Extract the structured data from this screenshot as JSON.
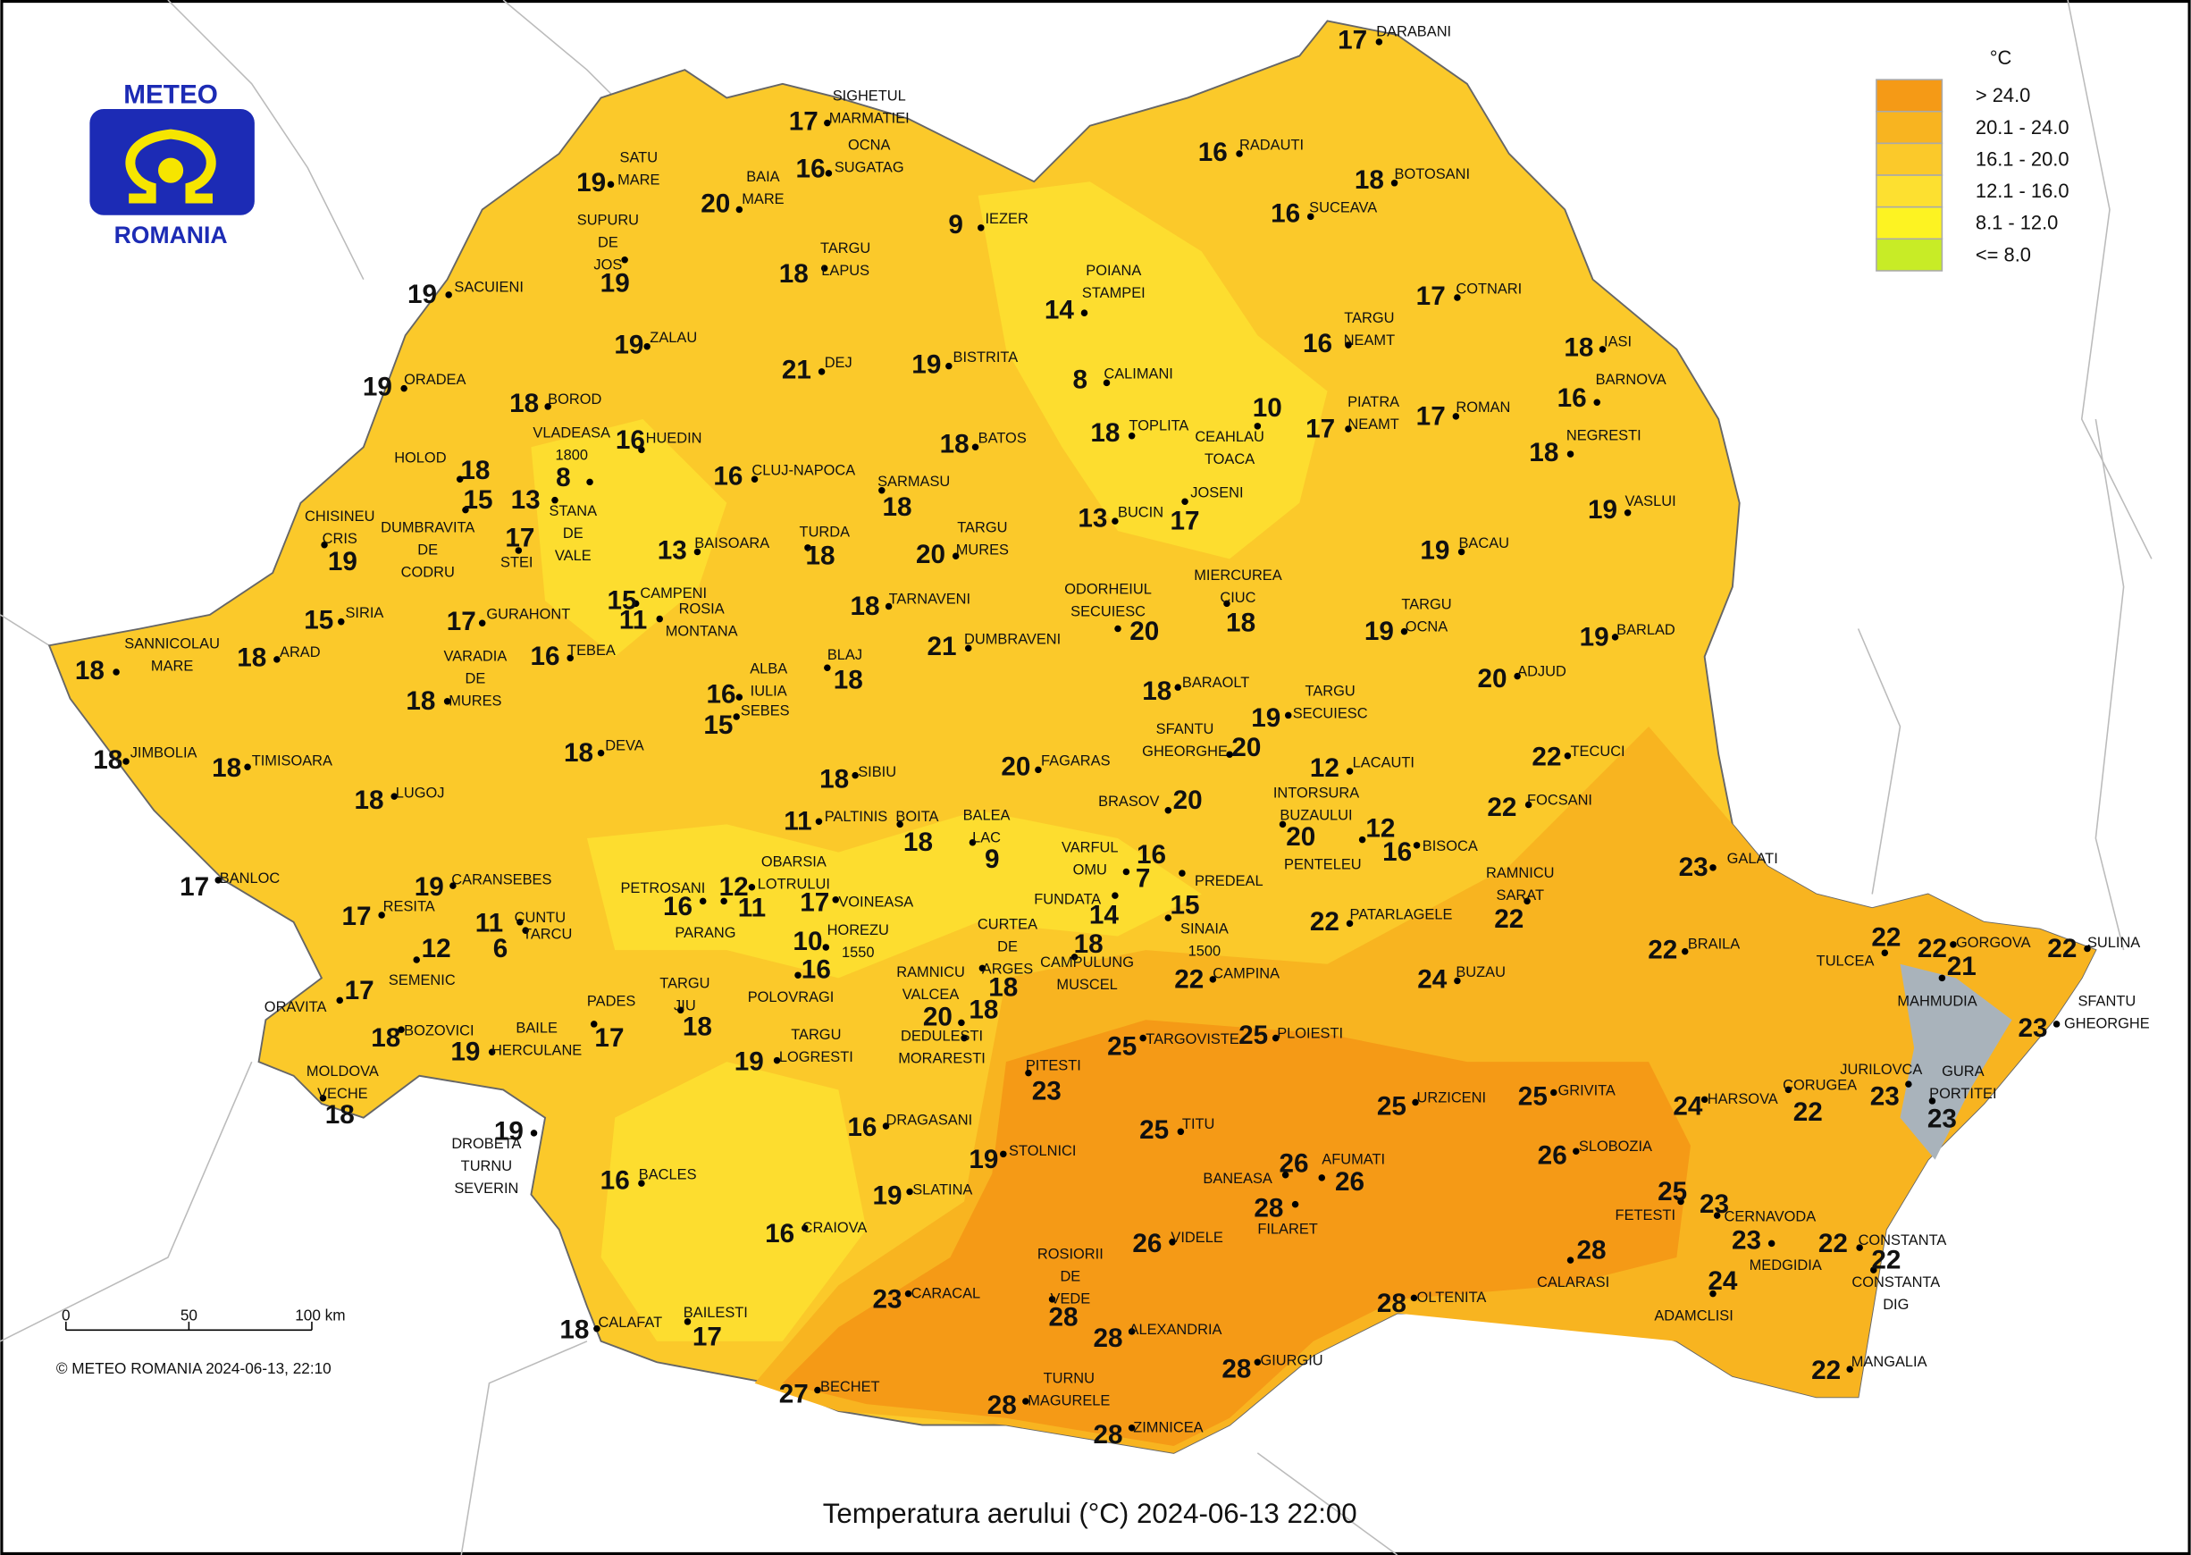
{
  "logo": {
    "top": "METEO",
    "bottom": "ROMANIA"
  },
  "legend": {
    "title": "°C",
    "items": [
      {
        "label": "> 24.0",
        "color": "#f59a16"
      },
      {
        "label": "20.1 - 24.0",
        "color": "#f8b420"
      },
      {
        "label": "16.1 - 20.0",
        "color": "#fbc92a"
      },
      {
        "label": "12.1 - 16.0",
        "color": "#fde030"
      },
      {
        "label": "8.1 - 12.0",
        "color": "#fdf322"
      },
      {
        "label": "<= 8.0",
        "color": "#c8ec26"
      }
    ]
  },
  "scale": {
    "ticks": [
      "0",
      "50",
      "100 km"
    ]
  },
  "credit": "© METEO ROMANIA 2024-06-13, 22:10",
  "title": "Temperatura aerului (°C) 2024-06-13 22:00",
  "stations": [
    {
      "name": [
        "DARABANI"
      ],
      "temp": 17
    },
    {
      "name": [
        "SIGHETUL",
        "MARMATIEI"
      ],
      "temp": 17
    },
    {
      "name": [
        "SATU",
        "MARE"
      ],
      "temp": 19
    },
    {
      "name": [
        "BAIA",
        "MARE"
      ],
      "temp": 20
    },
    {
      "name": [
        "OCNA",
        "SUGATAG"
      ],
      "temp": 16
    },
    {
      "name": [
        "IEZER"
      ],
      "temp": 9
    },
    {
      "name": [
        "RADAUTI"
      ],
      "temp": 16
    },
    {
      "name": [
        "BOTOSANI"
      ],
      "temp": 18
    },
    {
      "name": [
        "SUCEAVA"
      ],
      "temp": 16
    },
    {
      "name": [
        "SUPURU",
        "DE",
        "JOS"
      ],
      "temp": 19
    },
    {
      "name": [
        "TARGU",
        "LAPUS"
      ],
      "temp": 18
    },
    {
      "name": [
        "SACUIENI"
      ],
      "temp": 19
    },
    {
      "name": [
        "ZALAU"
      ],
      "temp": 19
    },
    {
      "name": [
        "POIANA",
        "STAMPEI"
      ],
      "temp": 14
    },
    {
      "name": [
        "COTNARI"
      ],
      "temp": 17
    },
    {
      "name": [
        "TARGU",
        "NEAMT"
      ],
      "temp": 16
    },
    {
      "name": [
        "IASI"
      ],
      "temp": 18
    },
    {
      "name": [
        "ORADEA"
      ],
      "temp": 19
    },
    {
      "name": [
        "DEJ"
      ],
      "temp": 21
    },
    {
      "name": [
        "BISTRITA"
      ],
      "temp": 19
    },
    {
      "name": [
        "CALIMANI"
      ],
      "temp": 8
    },
    {
      "name": [
        "BARNOVA"
      ],
      "temp": 16
    },
    {
      "name": [
        "BOROD"
      ],
      "temp": 18
    },
    {
      "name": [
        "VLADEASA",
        "1800"
      ],
      "temp": 8
    },
    {
      "name": [
        "HUEDIN"
      ],
      "temp": 16
    },
    {
      "name": [
        "HOLOD"
      ],
      "temp": 18
    },
    {
      "name": [
        "CEAHLAU",
        "TOACA"
      ],
      "temp": 10
    },
    {
      "name": [
        "PIATRA",
        "NEAMT"
      ],
      "temp": 17
    },
    {
      "name": [
        "ROMAN"
      ],
      "temp": 17
    },
    {
      "name": [
        "TOPLITA"
      ],
      "temp": 18
    },
    {
      "name": [
        "BATOS"
      ],
      "temp": 18
    },
    {
      "name": [
        "NEGRESTI"
      ],
      "temp": 18
    },
    {
      "name": [
        "CLUJ-NAPOCA"
      ],
      "temp": 16
    },
    {
      "name": [
        "SARMASU"
      ],
      "temp": 18
    },
    {
      "name": [
        "DUMBRAVITA",
        "DE",
        "CODRU"
      ],
      "temp": 15
    },
    {
      "name": [
        "STANA",
        "DE",
        "VALE"
      ],
      "temp": 13
    },
    {
      "name": [
        "CHISINEU",
        "CRIS"
      ],
      "temp": 19
    },
    {
      "name": [
        "STEI"
      ],
      "temp": 17
    },
    {
      "name": [
        "BUCIN"
      ],
      "temp": 13
    },
    {
      "name": [
        "JOSENI"
      ],
      "temp": 17
    },
    {
      "name": [
        "BAISOARA"
      ],
      "temp": 13
    },
    {
      "name": [
        "TURDA"
      ],
      "temp": 18
    },
    {
      "name": [
        "TARGU",
        "MURES"
      ],
      "temp": 20
    },
    {
      "name": [
        "VASLUI"
      ],
      "temp": 19
    },
    {
      "name": [
        "BACAU"
      ],
      "temp": 19
    },
    {
      "name": [
        "SIRIA"
      ],
      "temp": 15
    },
    {
      "name": [
        "GURAHONT"
      ],
      "temp": 17
    },
    {
      "name": [
        "CAMPENI"
      ],
      "temp": 15
    },
    {
      "name": [
        "ROSIA",
        "MONTANA"
      ],
      "temp": 11
    },
    {
      "name": [
        "TARNAVENI"
      ],
      "temp": 18
    },
    {
      "name": [
        "ODORHEIUL",
        "SECUIESC"
      ],
      "temp": 20
    },
    {
      "name": [
        "MIERCUREA",
        "CIUC"
      ],
      "temp": 18
    },
    {
      "name": [
        "TARGU",
        "OCNA"
      ],
      "temp": 19
    },
    {
      "name": [
        "BARLAD"
      ],
      "temp": 19
    },
    {
      "name": [
        "SANNICOLAU",
        "MARE"
      ],
      "temp": 18
    },
    {
      "name": [
        "ARAD"
      ],
      "temp": 18
    },
    {
      "name": [
        "VARADIA",
        "DE",
        "MURES"
      ],
      "temp": 18
    },
    {
      "name": [
        "TEBEA"
      ],
      "temp": 16
    },
    {
      "name": [
        "DUMBRAVENI"
      ],
      "temp": 21
    },
    {
      "name": [
        "BLAJ"
      ],
      "temp": 18
    },
    {
      "name": [
        "ADJUD"
      ],
      "temp": 20
    },
    {
      "name": [
        "ALBA",
        "IULIA"
      ],
      "temp": 16
    },
    {
      "name": [
        "SEBES"
      ],
      "temp": 15
    },
    {
      "name": [
        "BARAOLT"
      ],
      "temp": 18
    },
    {
      "name": [
        "TARGU",
        "SECUIESC"
      ],
      "temp": 19
    },
    {
      "name": [
        "JIMBOLIA"
      ],
      "temp": 18
    },
    {
      "name": [
        "TIMISOARA"
      ],
      "temp": 18
    },
    {
      "name": [
        "DEVA"
      ],
      "temp": 18
    },
    {
      "name": [
        "SFANTU",
        "GHEORGHE"
      ],
      "temp": 20
    },
    {
      "name": [
        "TECUCI"
      ],
      "temp": 22
    },
    {
      "name": [
        "SIBIU"
      ],
      "temp": 18
    },
    {
      "name": [
        "FAGARAS"
      ],
      "temp": 20
    },
    {
      "name": [
        "LACAUTI"
      ],
      "temp": 12
    },
    {
      "name": [
        "LUGOJ"
      ],
      "temp": 18
    },
    {
      "name": [
        "PALTINIS"
      ],
      "temp": 11
    },
    {
      "name": [
        "BOITA"
      ],
      "temp": 18
    },
    {
      "name": [
        "BRASOV"
      ],
      "temp": 20
    },
    {
      "name": [
        "INTORSURA",
        "BUZAULUI"
      ],
      "temp": 20
    },
    {
      "name": [
        "FOCSANI"
      ],
      "temp": 22
    },
    {
      "name": [
        "BISOCA"
      ],
      "temp": 16
    },
    {
      "name": [
        "PENTELEU"
      ],
      "temp": 12
    },
    {
      "name": [
        "BALEA",
        "LAC"
      ],
      "temp": 9
    },
    {
      "name": [
        "BANLOC"
      ],
      "temp": 17
    },
    {
      "name": [
        "CARANSEBES"
      ],
      "temp": 19
    },
    {
      "name": [
        "VARFUL",
        "OMU"
      ],
      "temp": 16
    },
    {
      "name": [
        "PREDEAL"
      ],
      "temp": 7
    },
    {
      "name": [
        "PATARLAGELE"
      ],
      "temp": 22
    },
    {
      "name": [
        "RAMNICU",
        "SARAT"
      ],
      "temp": 22
    },
    {
      "name": [
        "GALATI"
      ],
      "temp": 23
    },
    {
      "name": [
        "PETROSANI"
      ],
      "temp": 16
    },
    {
      "name": [
        "OBARSIA",
        "LOTRULUI"
      ],
      "temp": 12
    },
    {
      "name": [
        "PARANG"
      ],
      "temp": 11
    },
    {
      "name": [
        "VOINEASA"
      ],
      "temp": 17
    },
    {
      "name": [
        "FUNDATA"
      ],
      "temp": 14
    },
    {
      "name": [
        "SINAIA",
        "1500"
      ],
      "temp": 15
    },
    {
      "name": [
        "CUNTU"
      ],
      "temp": 11
    },
    {
      "name": [
        "TARCU"
      ],
      "temp": 6
    },
    {
      "name": [
        "RESITA"
      ],
      "temp": 17
    },
    {
      "name": [
        "SEMENIC"
      ],
      "temp": 12
    },
    {
      "name": [
        "CURTEA",
        "DE",
        "ARGES"
      ],
      "temp": 18
    },
    {
      "name": [
        "CAMPULUNG",
        "MUSCEL"
      ],
      "temp": 18
    },
    {
      "name": [
        "HOREZU",
        "1550"
      ],
      "temp": 10
    },
    {
      "name": [
        "POLOVRAGI"
      ],
      "temp": 16
    },
    {
      "name": [
        "CAMPINA"
      ],
      "temp": 22
    },
    {
      "name": [
        "TULCEA"
      ],
      "temp": 22
    },
    {
      "name": [
        "GORGOVA"
      ],
      "temp": 22
    },
    {
      "name": [
        "MAHMUDIA"
      ],
      "temp": 21
    },
    {
      "name": [
        "SULINA"
      ],
      "temp": 22
    },
    {
      "name": [
        "BRAILA"
      ],
      "temp": 22
    },
    {
      "name": [
        "BUZAU"
      ],
      "temp": 24
    },
    {
      "name": [
        "ORAVITA"
      ],
      "temp": 17
    },
    {
      "name": [
        "PADES"
      ],
      "temp": 17
    },
    {
      "name": [
        "TARGU",
        "JIU"
      ],
      "temp": 18
    },
    {
      "name": [
        "RAMNICU",
        "VALCEA"
      ],
      "temp": 20
    },
    {
      "name": [
        "DEDULESTI",
        "MORARESTI"
      ],
      "temp": 18
    },
    {
      "name": [
        "BOZOVICI"
      ],
      "temp": 18
    },
    {
      "name": [
        "BAILE",
        "HERCULANE"
      ],
      "temp": 19
    },
    {
      "name": [
        "TARGOVISTE"
      ],
      "temp": 25
    },
    {
      "name": [
        "PLOIESTI"
      ],
      "temp": 25
    },
    {
      "name": [
        "SFANTU",
        "GHEORGHE"
      ],
      "temp": 23
    },
    {
      "name": [
        "TARGU",
        "LOGRESTI"
      ],
      "temp": 19
    },
    {
      "name": [
        "PITESTI"
      ],
      "temp": 23
    },
    {
      "name": [
        "MOLDOVA",
        "VECHE"
      ],
      "temp": 18
    },
    {
      "name": [
        "URZICENI"
      ],
      "temp": 25
    },
    {
      "name": [
        "GRIVITA"
      ],
      "temp": 25
    },
    {
      "name": [
        "JURILOVCA"
      ],
      "temp": 23
    },
    {
      "name": [
        "CORUGEA"
      ],
      "temp": 22
    },
    {
      "name": [
        "HARSOVA"
      ],
      "temp": 24
    },
    {
      "name": [
        "GURA",
        "PORTITEI"
      ],
      "temp": 23
    },
    {
      "name": [
        "DROBETA",
        "TURNU",
        "SEVERIN"
      ],
      "temp": 19
    },
    {
      "name": [
        "TITU"
      ],
      "temp": 25
    },
    {
      "name": [
        "DRAGASANI"
      ],
      "temp": 16
    },
    {
      "name": [
        "STOLNICI"
      ],
      "temp": 19
    },
    {
      "name": [
        "SLOBOZIA"
      ],
      "temp": 26
    },
    {
      "name": [
        "AFUMATI"
      ],
      "temp": 26
    },
    {
      "name": [
        "BANEASA"
      ],
      "temp": 26
    },
    {
      "name": [
        "FILARET"
      ],
      "temp": 28
    },
    {
      "name": [
        "BACLES"
      ],
      "temp": 16
    },
    {
      "name": [
        "SLATINA"
      ],
      "temp": 19
    },
    {
      "name": [
        "FETESTI"
      ],
      "temp": 25
    },
    {
      "name": [
        "CERNAVODA"
      ],
      "temp": 23
    },
    {
      "name": [
        "CRAIOVA"
      ],
      "temp": 16
    },
    {
      "name": [
        "VIDELE"
      ],
      "temp": 26
    },
    {
      "name": [
        "MEDGIDIA"
      ],
      "temp": 23
    },
    {
      "name": [
        "CONSTANTA"
      ],
      "temp": 22
    },
    {
      "name": [
        "CONSTANTA",
        "DIG"
      ],
      "temp": 22
    },
    {
      "name": [
        "CALARASI"
      ],
      "temp": 28
    },
    {
      "name": [
        "ROSIORII",
        "DE",
        "VEDE"
      ],
      "temp": 28
    },
    {
      "name": [
        "ADAMCLISI"
      ],
      "temp": 24
    },
    {
      "name": [
        "CARACAL"
      ],
      "temp": 23
    },
    {
      "name": [
        "OLTENITA"
      ],
      "temp": 28
    },
    {
      "name": [
        "CALAFAT"
      ],
      "temp": 18
    },
    {
      "name": [
        "BAILESTI"
      ],
      "temp": 17
    },
    {
      "name": [
        "ALEXANDRIA"
      ],
      "temp": 28
    },
    {
      "name": [
        "GIURGIU"
      ],
      "temp": 28
    },
    {
      "name": [
        "MANGALIA"
      ],
      "temp": 22
    },
    {
      "name": [
        "BECHET"
      ],
      "temp": 27
    },
    {
      "name": [
        "TURNU",
        "MAGURELE"
      ],
      "temp": 28
    },
    {
      "name": [
        "ZIMNICEA"
      ],
      "temp": 28
    }
  ]
}
